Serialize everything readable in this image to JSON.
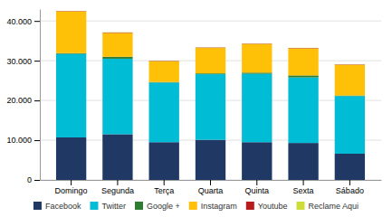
{
  "chart_data": {
    "type": "bar",
    "stacked": true,
    "grid": true,
    "legend": "bottom",
    "categories": [
      "Domingo",
      "Segunda",
      "Terça",
      "Quarta",
      "Quinta",
      "Sexta",
      "Sábado"
    ],
    "series": [
      {
        "name": "Facebook",
        "color": "#1f3864",
        "values": [
          10700,
          11500,
          9500,
          10100,
          9500,
          9300,
          6600
        ]
      },
      {
        "name": "Twitter",
        "color": "#00bcd4",
        "values": [
          21000,
          19000,
          15000,
          16500,
          17200,
          16500,
          14500
        ]
      },
      {
        "name": "Google +",
        "color": "#2e7d32",
        "values": [
          200,
          500,
          150,
          200,
          300,
          500,
          150
        ]
      },
      {
        "name": "Instagram",
        "color": "#ffc107",
        "values": [
          10500,
          6000,
          5200,
          6400,
          7200,
          6800,
          7700
        ]
      },
      {
        "name": "Youtube",
        "color": "#b71c1c",
        "values": [
          100,
          100,
          100,
          100,
          100,
          100,
          100
        ]
      },
      {
        "name": "Reclame Aqui",
        "color": "#cddc39",
        "values": [
          50,
          50,
          50,
          50,
          50,
          50,
          50
        ]
      }
    ],
    "ylim": [
      0,
      43000
    ],
    "yticks": [
      0,
      {
        "value": 10000,
        "label": "10.000"
      },
      {
        "value": 20000,
        "label": "20.000"
      },
      {
        "value": 30000,
        "label": "30.000"
      },
      {
        "value": 40000,
        "label": "40.000"
      }
    ]
  }
}
